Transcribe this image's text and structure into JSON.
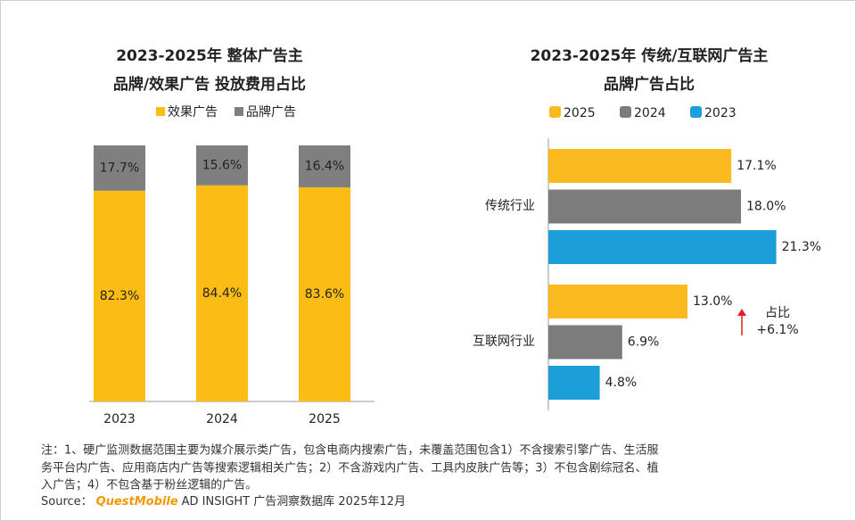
{
  "chart_data": [
    {
      "type": "bar",
      "stacked": true,
      "title": [
        "2023-2025年 整体广告主",
        "品牌/效果广告 投放费用占比"
      ],
      "categories": [
        "2023",
        "2024",
        "2025"
      ],
      "series": [
        {
          "name": "效果广告",
          "color": "#fbbc14",
          "values": [
            82.3,
            84.4,
            83.6
          ],
          "value_labels": [
            "82.3%",
            "84.4%",
            "83.6%"
          ]
        },
        {
          "name": "品牌广告",
          "color": "#7f7f7f",
          "values": [
            17.7,
            15.6,
            16.4
          ],
          "value_labels": [
            "17.7%",
            "15.6%",
            "16.4%"
          ]
        }
      ]
    },
    {
      "type": "barh",
      "title": [
        "2023-2025年 传统/互联网广告主",
        "品牌广告占比"
      ],
      "categories": [
        "传统行业",
        "互联网行业"
      ],
      "series": [
        {
          "name": "2025",
          "color": "#fbb920",
          "values": [
            17.1,
            13.0
          ],
          "value_labels": [
            "17.1%",
            "13.0%"
          ]
        },
        {
          "name": "2024",
          "color": "#7c7c7c",
          "values": [
            18.0,
            6.9
          ],
          "value_labels": [
            "18.0%",
            "6.9%"
          ]
        },
        {
          "name": "2023",
          "color": "#1c9fd8",
          "values": [
            21.3,
            4.8
          ],
          "value_labels": [
            "21.3%",
            "4.8%"
          ]
        }
      ],
      "annotation": [
        "占比",
        "+6.1%"
      ],
      "annotation_color": "#e02020"
    }
  ],
  "note": [
    "注：1、硬广监测数据范围主要为媒介展示类广告，包含电商内搜索广告，未覆盖范围包含1）不含搜索引擎广告、生活服",
    "务平台内广告、应用商店内广告等搜索逻辑相关广告；2）不含游戏内广告、工具内皮肤广告等；3）不包含剧综冠名、植",
    "入广告；4）不包含基于粉丝逻辑的广告。"
  ],
  "source": {
    "label": "Source：",
    "brand": "QuestMobile",
    "text": "AD INSIGHT 广告洞察数据库 2025年12月"
  }
}
